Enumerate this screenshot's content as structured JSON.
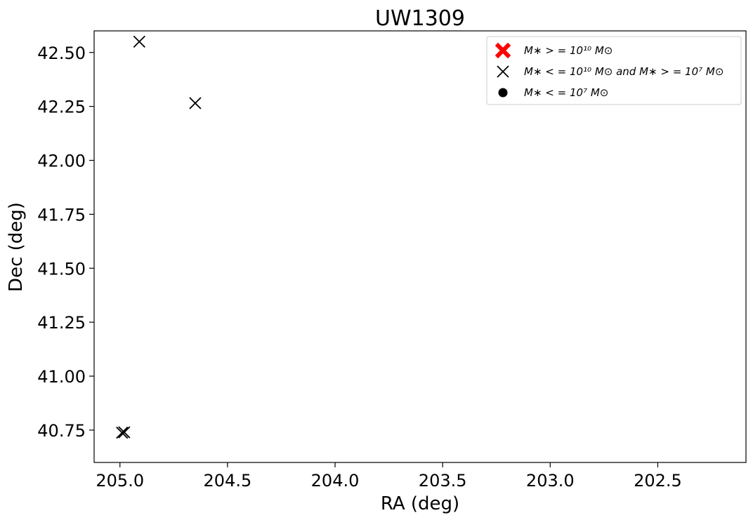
{
  "chart_data": {
    "type": "scatter",
    "title": "UW1309",
    "xlabel": "RA (deg)",
    "ylabel": "Dec (deg)",
    "x_inverted": true,
    "xlim": [
      205.12,
      202.09
    ],
    "ylim": [
      40.6,
      42.6
    ],
    "xticks": [
      205.0,
      204.5,
      204.0,
      203.5,
      203.0,
      202.5
    ],
    "xtick_labels": [
      "205.0",
      "204.5",
      "204.0",
      "203.5",
      "203.0",
      "202.5"
    ],
    "yticks": [
      40.75,
      41.0,
      41.25,
      41.5,
      41.75,
      42.0,
      42.25,
      42.5
    ],
    "ytick_labels": [
      "40.75",
      "41.00",
      "41.25",
      "41.50",
      "41.75",
      "42.00",
      "42.25",
      "42.50"
    ],
    "grid": false,
    "legend_position": "top-right",
    "legend": [
      {
        "label": "M∗ > = 10¹⁰ M⊙",
        "marker": "filled-x",
        "color": "#ff0000"
      },
      {
        "label": "M∗ < = 10¹⁰ M⊙ and M∗ > = 10⁷ M⊙",
        "marker": "x",
        "color": "#000000"
      },
      {
        "label": "M∗ < = 10⁷ M⊙",
        "marker": "dot",
        "color": "#000000"
      }
    ],
    "series": [
      {
        "name": "M∗ < = 10¹⁰ M⊙ and M∗ > = 10⁷ M⊙",
        "marker": "x",
        "color": "#000000",
        "points": [
          {
            "x": 204.91,
            "y": 42.55
          },
          {
            "x": 204.65,
            "y": 42.265
          },
          {
            "x": 204.98,
            "y": 40.74
          },
          {
            "x": 204.99,
            "y": 40.738
          }
        ]
      }
    ]
  }
}
